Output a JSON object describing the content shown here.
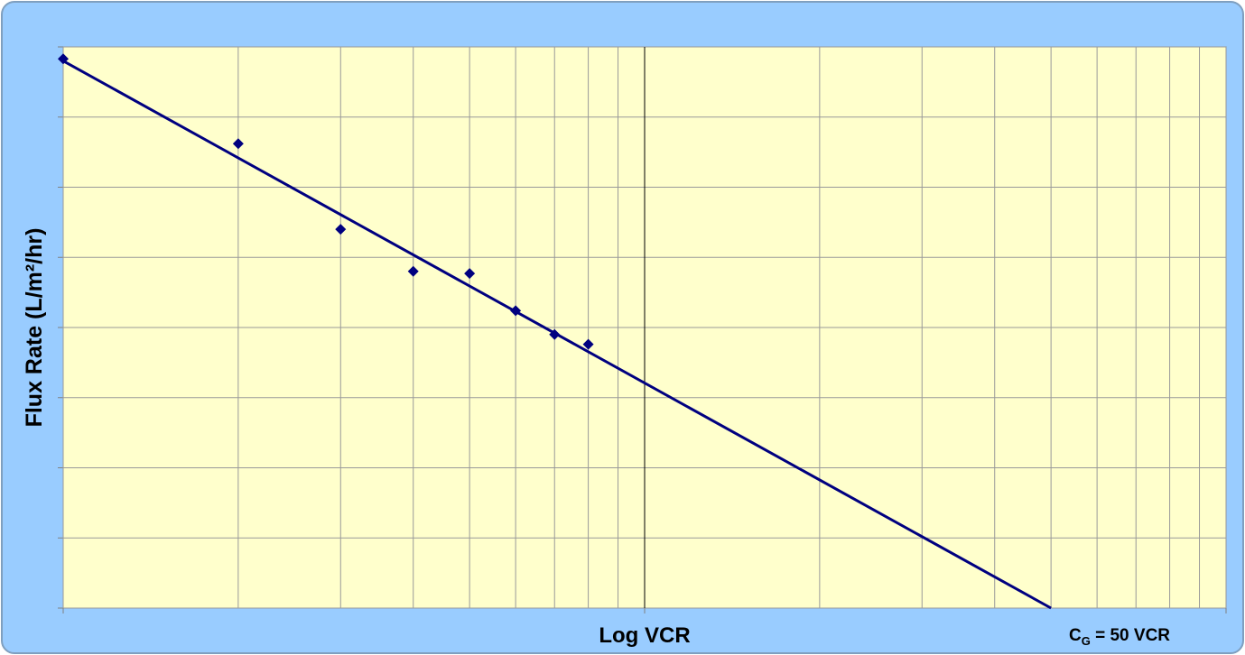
{
  "chart_data": {
    "type": "scatter",
    "x_label": "Log VCR",
    "y_label": "Flux Rate (L/m²/hr)",
    "annotation": {
      "base": "C",
      "sub": "G",
      "rest": " = 50 VCR"
    },
    "xscale": "log",
    "xlim": [
      1,
      100
    ],
    "xticks": [
      1,
      2,
      3,
      4,
      5,
      6,
      7,
      8,
      9,
      10,
      20,
      30,
      40,
      50,
      60,
      70,
      80,
      90,
      100
    ],
    "axis_cross_x": 10,
    "ylim": [
      0,
      80
    ],
    "yticks": [
      0,
      10,
      20,
      30,
      40,
      50,
      60,
      70,
      80
    ],
    "grid": true,
    "series": [
      {
        "style": "markers",
        "color": "#000080",
        "x": [
          1,
          2,
          3,
          4,
          5,
          6,
          7,
          8
        ],
        "values": [
          78.3,
          66.2,
          54.0,
          48.0,
          47.7,
          42.4,
          39.0,
          37.6
        ]
      },
      {
        "style": "line",
        "color": "#000080",
        "x": [
          1,
          50
        ],
        "values": [
          78,
          0
        ]
      }
    ]
  }
}
